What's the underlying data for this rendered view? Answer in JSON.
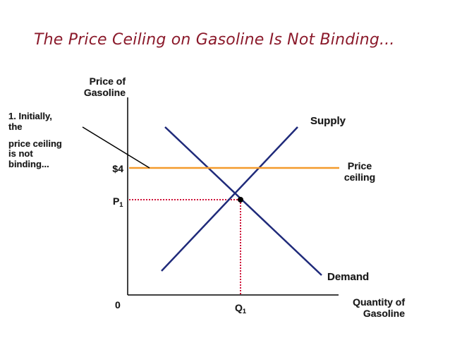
{
  "title": "The Price Ceiling on Gasoline Is Not Binding...",
  "colors": {
    "title": "#8b1a2b",
    "supply_demand_lines": "#1f2a7a",
    "price_ceiling_line": "#f39a2b",
    "dotted_guides": "#d0143a",
    "axes": "#000000"
  },
  "axes": {
    "y_label_line1": "Price of",
    "y_label_line2": "Gasoline",
    "x_label_line1": "Quantity of",
    "x_label_line2": "Gasoline",
    "origin": "0"
  },
  "ticks": {
    "ceiling_price": "$4",
    "eq_price_main": "P",
    "eq_price_sub": "1",
    "eq_qty_main": "Q",
    "eq_qty_sub": "1"
  },
  "curves": {
    "supply": "Supply",
    "demand": "Demand",
    "ceiling_line1": "Price",
    "ceiling_line2": "ceiling"
  },
  "annotation": {
    "line1": "1. Initially,",
    "line2": "the",
    "line3": "price ceiling",
    "line4": "is not",
    "line5": "binding..."
  }
}
